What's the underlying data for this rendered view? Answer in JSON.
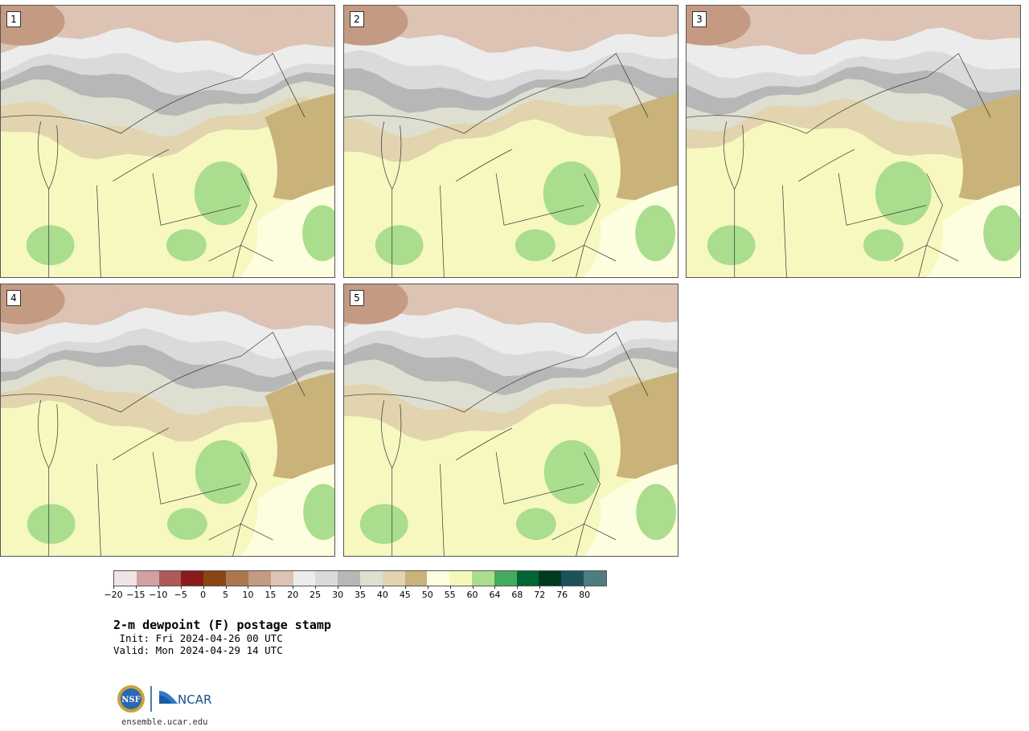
{
  "panels": [
    {
      "label": "1"
    },
    {
      "label": "2"
    },
    {
      "label": "3"
    },
    {
      "label": "4"
    },
    {
      "label": "5"
    }
  ],
  "colorbar": {
    "colors": [
      "#f0e4e4",
      "#d3a1a1",
      "#ad5a5a",
      "#8b1a1a",
      "#8b4513",
      "#ab7650",
      "#c49a82",
      "#dcc3b4",
      "#ececec",
      "#dadada",
      "#b7b7b7",
      "#dedfd1",
      "#e1d4ae",
      "#c9b37a",
      "#fdfde0",
      "#f4f9b9",
      "#aadd8d",
      "#44aa5e",
      "#006633",
      "#003a20",
      "#1c525b",
      "#4d7c81"
    ],
    "tick_labels": [
      "−20",
      "−15",
      "−10",
      "−5",
      "0",
      "5",
      "10",
      "15",
      "20",
      "25",
      "30",
      "35",
      "40",
      "45",
      "50",
      "55",
      "60",
      "64",
      "68",
      "72",
      "76",
      "80"
    ]
  },
  "title": "2-m dewpoint (F) postage stamp",
  "init": " Init: Fri 2024-04-26 00 UTC",
  "valid": "Valid: Mon 2024-04-29 14 UTC",
  "logo": {
    "left_text": "NSF",
    "right_text": "NCAR"
  },
  "site": "ensemble.ucar.edu"
}
